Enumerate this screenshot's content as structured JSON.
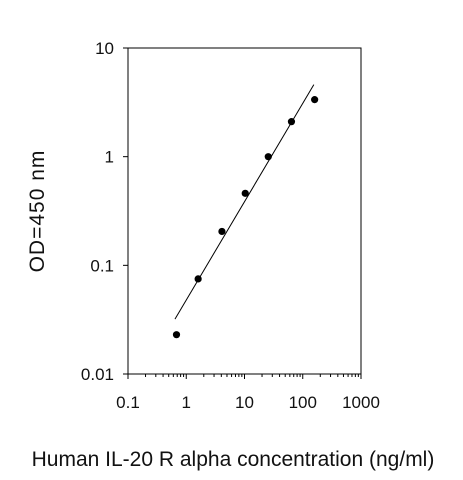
{
  "chart_data": {
    "type": "scatter",
    "title": "",
    "xlabel": "Human IL-20 R alpha concentration (ng/ml)",
    "ylabel": "OD=450 nm",
    "x_scale": "log",
    "y_scale": "log",
    "xlim": [
      0.1,
      1000
    ],
    "ylim": [
      0.01,
      10
    ],
    "x_ticks": [
      0.1,
      1,
      10,
      100,
      1000
    ],
    "x_tick_labels": [
      "0.1",
      "1",
      "10",
      "100",
      "1000"
    ],
    "y_ticks": [
      0.01,
      0.1,
      1,
      10
    ],
    "y_tick_labels": [
      "0.01",
      "0.1",
      "1",
      "10"
    ],
    "grid": false,
    "legend": "none",
    "points": [
      {
        "x": 0.68,
        "y": 0.023
      },
      {
        "x": 1.6,
        "y": 0.075
      },
      {
        "x": 4.1,
        "y": 0.205
      },
      {
        "x": 10.3,
        "y": 0.46
      },
      {
        "x": 25.6,
        "y": 1.0
      },
      {
        "x": 64,
        "y": 2.1
      },
      {
        "x": 160,
        "y": 3.35
      }
    ],
    "fit_line": {
      "x": [
        0.64,
        155
      ],
      "y": [
        0.032,
        4.6
      ]
    },
    "marker_color": "#000000",
    "line_color": "#000000"
  }
}
